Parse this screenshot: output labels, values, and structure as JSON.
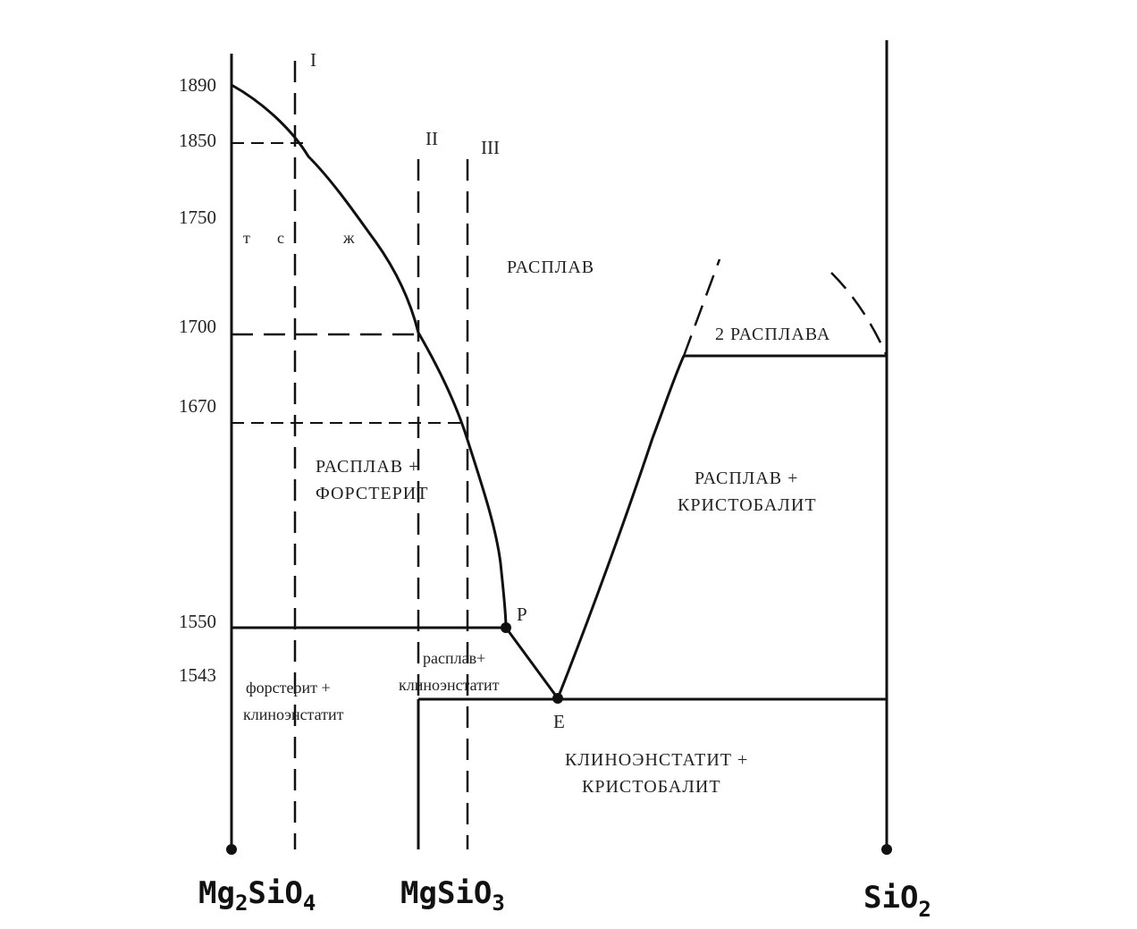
{
  "temperatures": {
    "t1890": "1890",
    "t1850": "1850",
    "t1750": "1750",
    "t1700": "1700",
    "t1670": "1670",
    "t1550": "1550",
    "t1543": "1543"
  },
  "composition_labels": {
    "forsterite": {
      "main": "Mg",
      "a": "2",
      "b": "SiO",
      "c": "4"
    },
    "enstatite": {
      "main": "MgSiO",
      "a": "3"
    },
    "silica": {
      "main": "SiO",
      "a": "2"
    }
  },
  "section_labels": {
    "I": "I",
    "II": "II",
    "III": "III"
  },
  "phase_region_labels": {
    "melt": "РАСПЛАВ",
    "two_melts": "2 РАСПЛАВА",
    "melt_forsterite_1": "РАСПЛАВ +",
    "melt_forsterite_2": "ФОРСТЕРИТ",
    "melt_cristobalite_1": "РАСПЛАВ +",
    "melt_cristobalite_2": "КРИСТОБАЛИТ",
    "forsterite_clinoenstatite_1": "форстерит +",
    "forsterite_clinoenstatite_2": "клиноэнстатит",
    "melt_clinoenstatite_1": "расплав+",
    "melt_clinoenstatite_2": "клиноэнстатит",
    "clinoenstatite_cristobalite_1": "КЛИНОЭНСТАТИТ +",
    "clinoenstatite_cristobalite_2": "КРИСТОБАЛИТ"
  },
  "point_labels": {
    "P": "P",
    "E": "E"
  },
  "cooling_path_labels": {
    "t": "т",
    "s": "с",
    "zh": "ж"
  }
}
